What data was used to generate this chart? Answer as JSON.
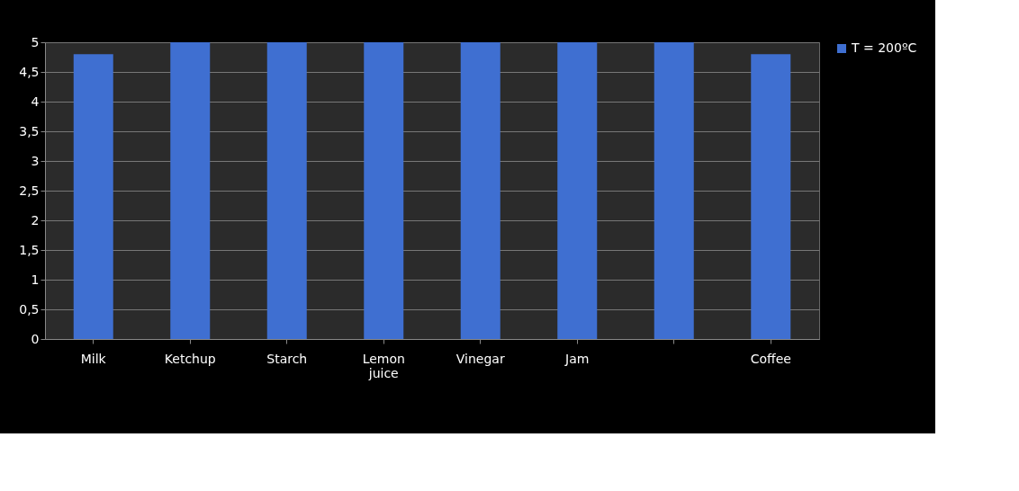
{
  "chart_data": {
    "type": "bar",
    "categories": [
      "Milk",
      "Ketchup",
      "Starch",
      "Lemon juice",
      "Vinegar",
      "Jam",
      null,
      "Coffee"
    ],
    "series": [
      {
        "name": "T = 200ºC",
        "color": "#3f6fd1",
        "values": [
          4.8,
          5,
          5,
          5,
          5,
          5,
          5,
          4.8
        ]
      }
    ],
    "ylim": [
      0,
      5
    ],
    "yticks": [
      0,
      {
        "value": 0.5,
        "label": "0,5"
      },
      1,
      {
        "value": 1.5,
        "label": "1,5"
      },
      2,
      {
        "value": 2.5,
        "label": "2,5"
      },
      3,
      {
        "value": 3.5,
        "label": "3,5"
      },
      4,
      {
        "value": 4.5,
        "label": "4,5"
      },
      5
    ],
    "grid": "y",
    "legend": "right"
  }
}
